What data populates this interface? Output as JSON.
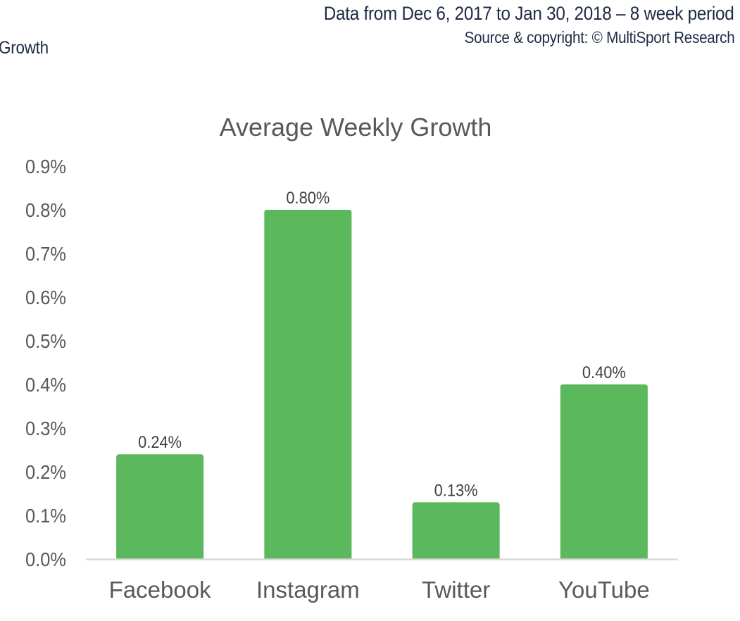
{
  "header": {
    "date_range": "Data from Dec 6, 2017 to Jan 30, 2018 – 8 week period",
    "source": "Source & copyright: © MultiSport Research",
    "left_fragment": "Growth"
  },
  "colors": {
    "bar": "#5cb85c",
    "axis_text": "#595959",
    "title_text": "#595959",
    "data_label_text": "#404040",
    "header_text": "#1f2a44",
    "axis_line": "#d9d9d9"
  },
  "chart_data": {
    "type": "bar",
    "title": "Average Weekly Growth",
    "xlabel": "",
    "ylabel": "",
    "categories": [
      "Facebook",
      "Instagram",
      "Twitter",
      "YouTube"
    ],
    "values": [
      0.24,
      0.8,
      0.13,
      0.4
    ],
    "data_labels": [
      "0.24%",
      "0.80%",
      "0.13%",
      "0.40%"
    ],
    "ylim": [
      0,
      0.9
    ],
    "yticks": [
      0.0,
      0.1,
      0.2,
      0.3,
      0.4,
      0.5,
      0.6,
      0.7,
      0.8,
      0.9
    ],
    "ytick_labels": [
      "0.0%",
      "0.1%",
      "0.2%",
      "0.3%",
      "0.4%",
      "0.5%",
      "0.6%",
      "0.7%",
      "0.8%",
      "0.9%"
    ],
    "grid": false,
    "legend": "none"
  }
}
